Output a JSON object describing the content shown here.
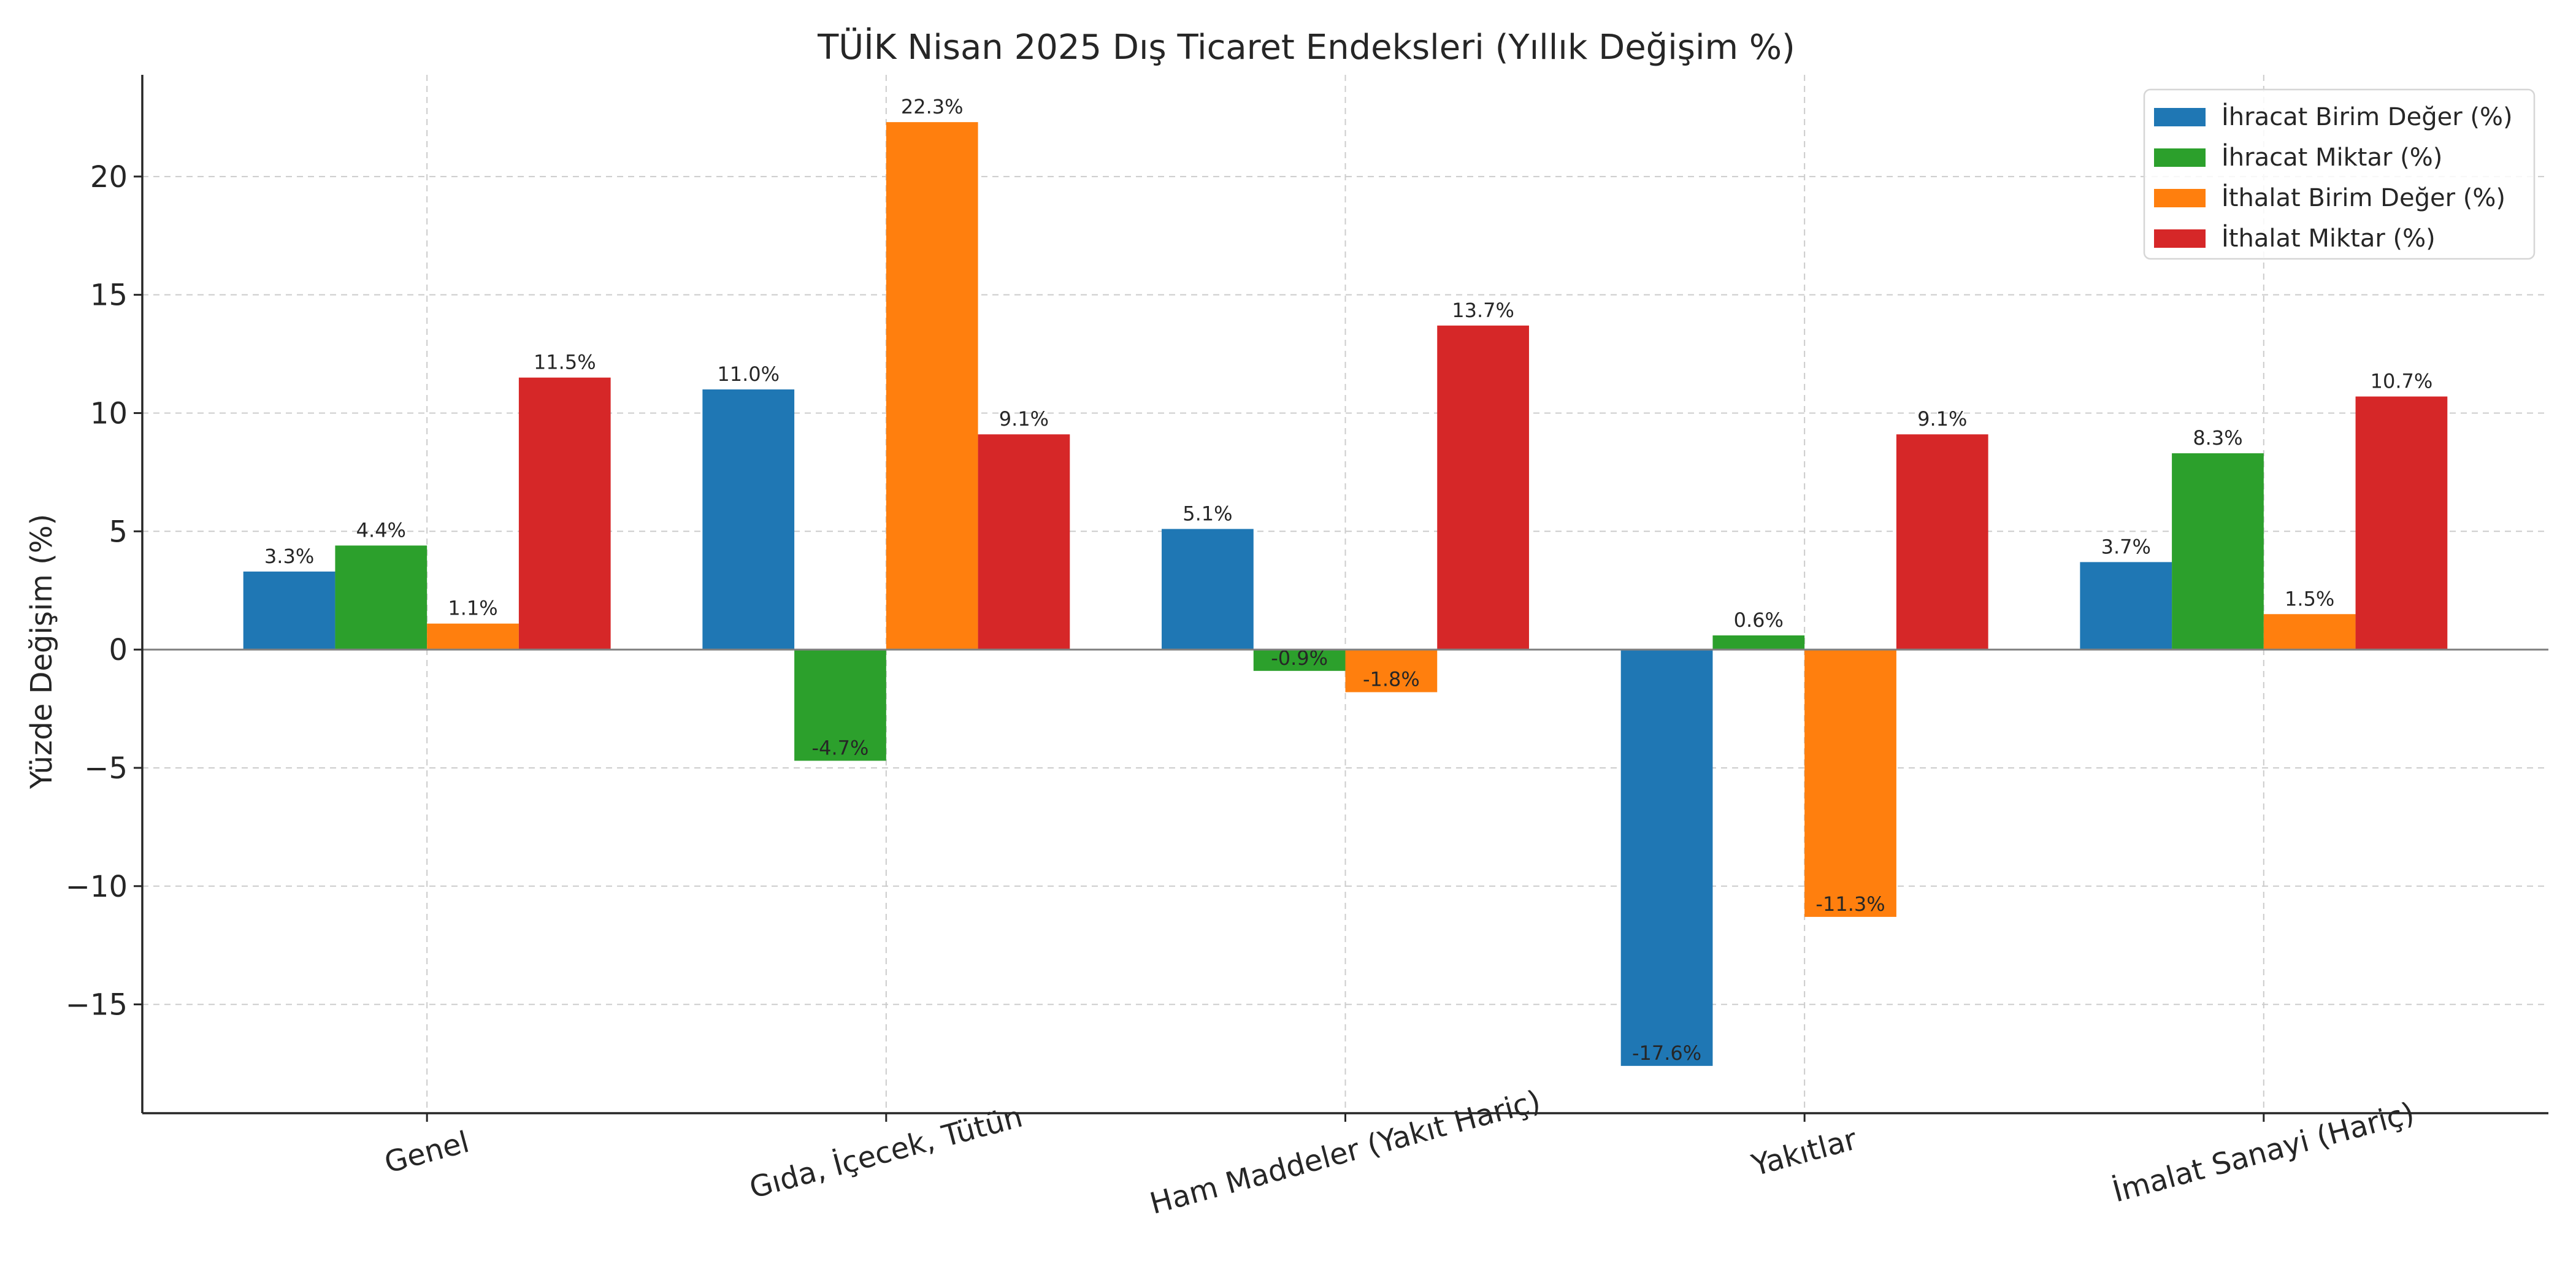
{
  "chart_data": {
    "type": "bar",
    "title": "TÜİK Nisan 2025 Dış Ticaret Endeksleri (Yıllık Değişim %)",
    "xlabel": "",
    "ylabel": "Yüzde Değişim (%)",
    "categories": [
      "Genel",
      "Gıda, İçecek, Tütün",
      "Ham Maddeler (Yakıt Hariç)",
      "Yakıtlar",
      "İmalat Sanayi (Hariç)"
    ],
    "series": [
      {
        "name": "İhracat Birim Değer (%)",
        "color": "#1f77b4",
        "values": [
          3.3,
          11.0,
          5.1,
          -17.6,
          3.7
        ]
      },
      {
        "name": "İhracat Miktar (%)",
        "color": "#2ca02c",
        "values": [
          4.4,
          -4.7,
          -0.9,
          0.6,
          8.3
        ]
      },
      {
        "name": "İthalat Birim Değer (%)",
        "color": "#ff7f0e",
        "values": [
          1.1,
          22.3,
          -1.8,
          -11.3,
          1.5
        ]
      },
      {
        "name": "İthalat Miktar (%)",
        "color": "#d62728",
        "values": [
          11.5,
          9.1,
          13.7,
          9.1,
          10.7
        ]
      }
    ],
    "ylim": [
      -19.6,
      24.3
    ],
    "yticks": [
      -15,
      -10,
      -5,
      0,
      5,
      10,
      15,
      20
    ],
    "label_suffix": "%",
    "grid": true,
    "legend_position": "top-right"
  }
}
